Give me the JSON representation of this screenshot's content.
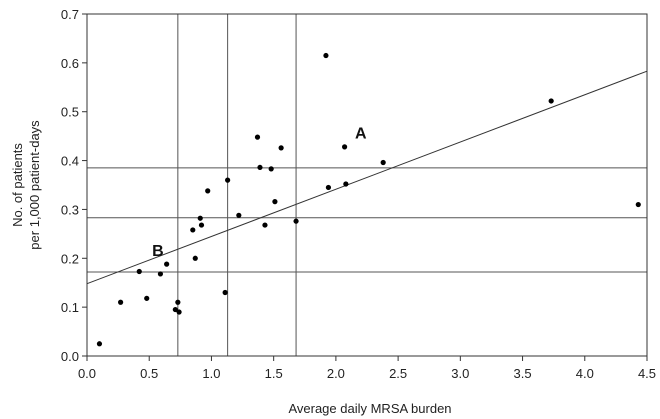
{
  "chart_data": {
    "type": "scatter",
    "xlabel": "Average daily MRSA burden",
    "ylabel_lines": [
      "No. of patients",
      "per 1,000 patient-days"
    ],
    "xlim": [
      0.0,
      4.5
    ],
    "ylim": [
      0.0,
      0.7
    ],
    "x_ticks": [
      "0.0",
      "0.5",
      "1.0",
      "1.5",
      "2.0",
      "2.5",
      "3.0",
      "3.5",
      "4.0",
      "4.5"
    ],
    "y_ticks": [
      "0.0",
      "0.1",
      "0.2",
      "0.3",
      "0.4",
      "0.5",
      "0.6",
      "0.7"
    ],
    "grid": false,
    "points": [
      {
        "x": 0.1,
        "y": 0.025
      },
      {
        "x": 0.27,
        "y": 0.11
      },
      {
        "x": 0.42,
        "y": 0.173
      },
      {
        "x": 0.48,
        "y": 0.118
      },
      {
        "x": 0.59,
        "y": 0.168
      },
      {
        "x": 0.64,
        "y": 0.188
      },
      {
        "x": 0.71,
        "y": 0.095
      },
      {
        "x": 0.73,
        "y": 0.11
      },
      {
        "x": 0.74,
        "y": 0.09
      },
      {
        "x": 0.85,
        "y": 0.258
      },
      {
        "x": 0.87,
        "y": 0.2
      },
      {
        "x": 0.91,
        "y": 0.282
      },
      {
        "x": 0.92,
        "y": 0.268
      },
      {
        "x": 0.97,
        "y": 0.338
      },
      {
        "x": 1.11,
        "y": 0.13
      },
      {
        "x": 1.13,
        "y": 0.36
      },
      {
        "x": 1.22,
        "y": 0.288
      },
      {
        "x": 1.37,
        "y": 0.448
      },
      {
        "x": 1.39,
        "y": 0.386
      },
      {
        "x": 1.43,
        "y": 0.268
      },
      {
        "x": 1.48,
        "y": 0.383
      },
      {
        "x": 1.51,
        "y": 0.316
      },
      {
        "x": 1.56,
        "y": 0.426
      },
      {
        "x": 1.68,
        "y": 0.276
      },
      {
        "x": 1.92,
        "y": 0.615
      },
      {
        "x": 1.94,
        "y": 0.345
      },
      {
        "x": 2.07,
        "y": 0.428
      },
      {
        "x": 2.08,
        "y": 0.352
      },
      {
        "x": 2.38,
        "y": 0.396
      },
      {
        "x": 3.73,
        "y": 0.522
      },
      {
        "x": 4.43,
        "y": 0.31
      }
    ],
    "regression_line": {
      "x": [
        0.0,
        4.5
      ],
      "y": [
        0.148,
        0.583
      ]
    },
    "vlines": [
      0.73,
      1.13,
      1.68
    ],
    "hlines": [
      0.172,
      0.283,
      0.385
    ],
    "annotations": [
      {
        "text": "A",
        "x": 2.2,
        "y": 0.445
      },
      {
        "text": "B",
        "x": 0.57,
        "y": 0.205
      }
    ]
  }
}
